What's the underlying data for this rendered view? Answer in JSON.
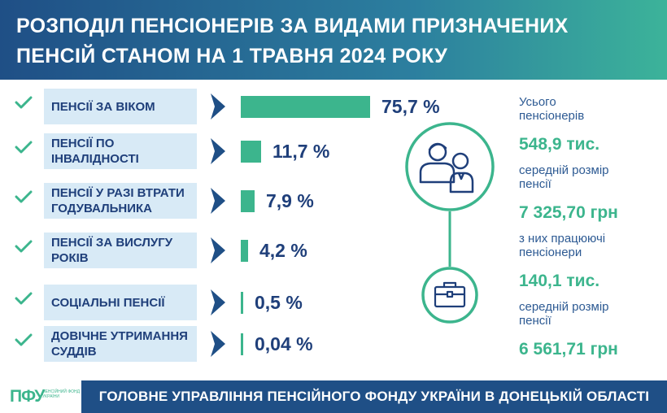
{
  "title": {
    "line1": "РОЗПОДІЛ ПЕНСІОНЕРІВ ЗА ВИДАМИ ПРИЗНАЧЕНИХ",
    "line2": "ПЕНСІЙ СТАНОМ НА 1 ТРАВНЯ 2024 РОКУ"
  },
  "chart_data": {
    "type": "bar",
    "orientation": "horizontal",
    "categories": [
      "ПЕНСІЇ ЗА ВІКОМ",
      "ПЕНСІЇ ПО ІНВАЛІДНОСТІ",
      "ПЕНСІЇ У РАЗІ ВТРАТИ ГОДУВАЛЬНИКА",
      "ПЕНСІЇ ЗА ВИСЛУГУ РОКІВ",
      "СОЦІАЛЬНІ ПЕНСІЇ",
      "ДОВІЧНЕ УТРИМАННЯ СУДДІВ"
    ],
    "values": [
      75.7,
      11.7,
      7.9,
      4.2,
      0.5,
      0.04
    ],
    "value_labels": [
      "75,7 %",
      "11,7 %",
      "7,9 %",
      "4,2 %",
      "0,5 %",
      "0,04 %"
    ],
    "unit": "%",
    "xlim": [
      0,
      75.7
    ],
    "grid": false,
    "legend": "none",
    "bar_color": "#3cb58d"
  },
  "stats": [
    {
      "label": "Усього пенсіонерів",
      "value": "548,9 тис."
    },
    {
      "label": "середній розмір пенсії",
      "value": "7 325,70 грн"
    },
    {
      "label": "з них працюючі пенсіонери",
      "value": "140,1 тис."
    },
    {
      "label": "середній розмір пенсії",
      "value": "6 561,71 грн"
    }
  ],
  "icons": {
    "check": "check-icon",
    "arrow": "chevron-right-icon",
    "people": "people-icon",
    "briefcase": "briefcase-icon"
  },
  "logo": {
    "text": "ПФУ",
    "subtext": "ПЕНСІЙНИЙ ФОНД УКРАЇНИ"
  },
  "footer": {
    "text": "ГОЛОВНЕ УПРАВЛІННЯ ПЕНСІЙНОГО ФОНДУ УКРАЇНИ В ДОНЕЦЬКІЙ ОБЛАСТІ"
  },
  "colors": {
    "navy": "#1f4f86",
    "green": "#3cb58d",
    "text_blue": "#1f3f7a",
    "label_bg": "#d8eaf6"
  }
}
